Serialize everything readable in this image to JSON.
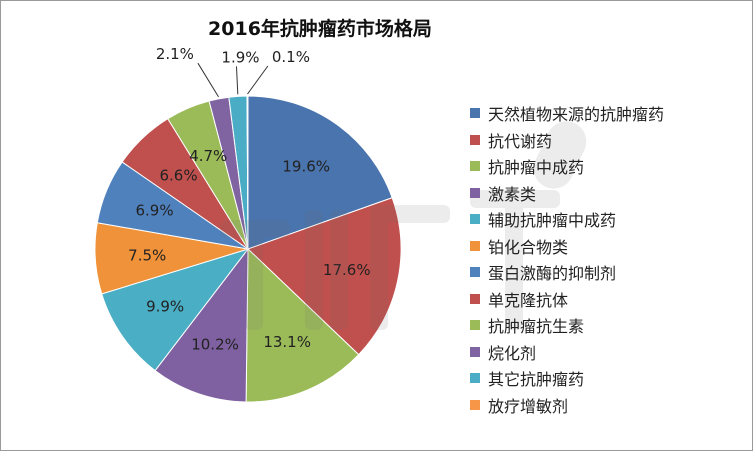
{
  "chart_data": {
    "type": "pie",
    "title": "2016年抗肿瘤药市场格局",
    "legend_position": "right",
    "slices": [
      {
        "name": "天然植物来源的抗肿瘤药",
        "value": 19.6,
        "label": "19.6%",
        "color": "#4a74ad"
      },
      {
        "name": "抗代谢药",
        "value": 17.6,
        "label": "17.6%",
        "color": "#c0504d"
      },
      {
        "name": "抗肿瘤中成药",
        "value": 13.1,
        "label": "13.1%",
        "color": "#9bbb59"
      },
      {
        "name": "激素类",
        "value": 10.2,
        "label": "10.2%",
        "color": "#7f60a1"
      },
      {
        "name": "辅助抗肿瘤中成药",
        "value": 9.9,
        "label": "9.9%",
        "color": "#4aaec5"
      },
      {
        "name": "铂化合物类",
        "value": 7.5,
        "label": "7.5%",
        "color": "#f0923a"
      },
      {
        "name": "蛋白激酶的抑制剂",
        "value": 6.9,
        "label": "6.9%",
        "color": "#4f81bd"
      },
      {
        "name": "单克隆抗体",
        "value": 6.6,
        "label": "6.6%",
        "color": "#c0504d"
      },
      {
        "name": "抗肿瘤抗生素",
        "value": 4.7,
        "label": "4.7%",
        "color": "#9bbb59"
      },
      {
        "name": "烷化剂",
        "value": 2.1,
        "label": "2.1%",
        "color": "#8064a2"
      },
      {
        "name": "其它抗肿瘤药",
        "value": 1.9,
        "label": "1.9%",
        "color": "#4bacc6"
      },
      {
        "name": "放疗增敏剂",
        "value": 0.1,
        "label": "0.1%",
        "color": "#f79646"
      }
    ]
  }
}
